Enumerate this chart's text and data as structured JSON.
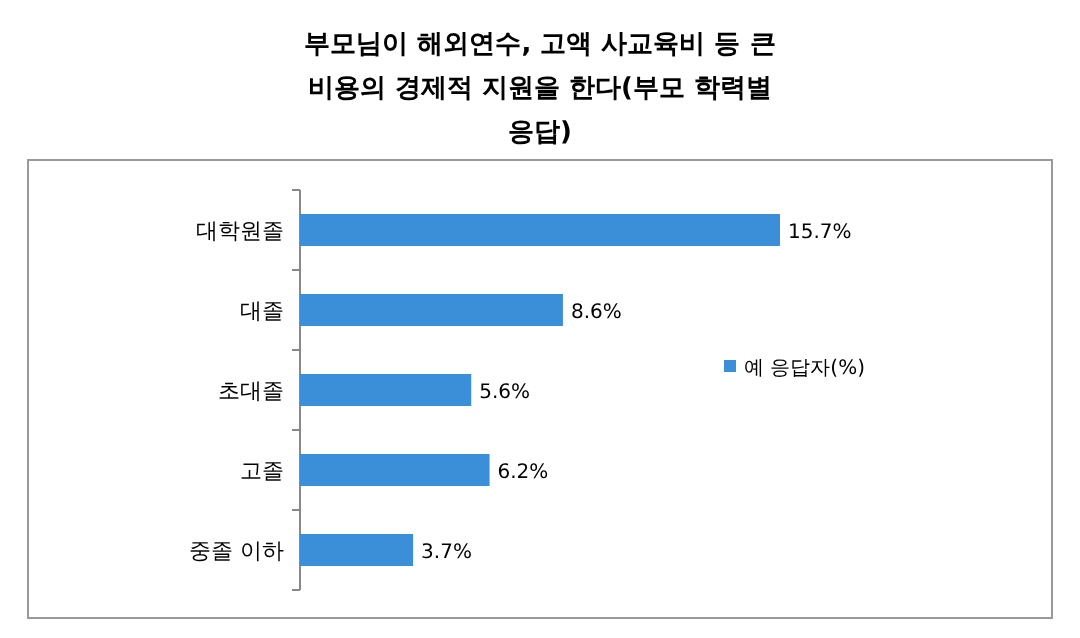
{
  "chart_data": {
    "type": "bar",
    "orientation": "horizontal",
    "title": "부모님이 해외연수, 고액 사교육비 등 큰 비용의 경제적 지원을 한다(부모 학력별 응답)",
    "categories": [
      "대학원졸",
      "대졸",
      "초대졸",
      "고졸",
      "중졸 이하"
    ],
    "series": [
      {
        "name": "예 응답자(%)",
        "color": "#3a8fd8",
        "values": [
          15.7,
          8.6,
          5.6,
          6.2,
          3.7
        ],
        "value_labels": [
          "15.7%",
          "8.6%",
          "5.6%",
          "6.2%",
          "3.7%"
        ]
      }
    ],
    "legend": "right"
  }
}
